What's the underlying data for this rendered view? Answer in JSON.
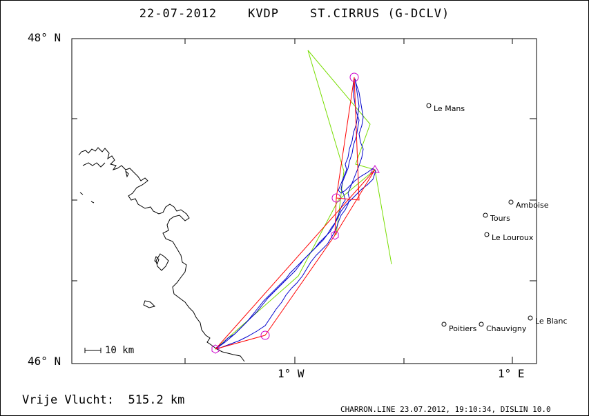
{
  "title": "22-07-2012    KVDP    ST.CIRRUS (G-DCLV)",
  "axes": {
    "lat_top": "48° N",
    "lat_bottom": "46° N",
    "lon_1w": "1° W",
    "lon_1e": "1° E"
  },
  "scale_label": "10 km",
  "free_flight": "Vrije Vlucht:  515.2 km",
  "footer": "CHARRON.LINE 23.07.2012, 19:10:34, DISLIN 10.0",
  "towns": [
    {
      "name": "Le Mans"
    },
    {
      "name": "Amboise"
    },
    {
      "name": "Tours"
    },
    {
      "name": "Le Louroux"
    },
    {
      "name": "Poitiers"
    },
    {
      "name": "Chauvigny"
    },
    {
      "name": "Le Blanc"
    }
  ],
  "colors": {
    "track": "#0000cc",
    "task": "#ff0000",
    "alt_route": "#77dd00",
    "turnpoint": "#cc00cc",
    "coast": "#000000"
  }
}
